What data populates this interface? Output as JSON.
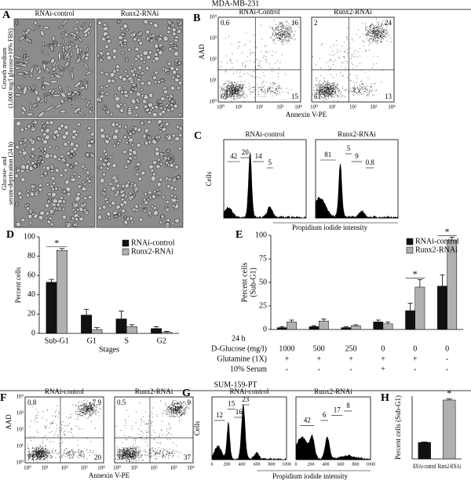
{
  "header": {
    "top": "MDA-MB-231",
    "bottom": "SUM-159-PT"
  },
  "panel_a": {
    "letter": "A",
    "columns": [
      "RNAi-control",
      "Runx2-RNAi"
    ],
    "rows": [
      [
        "Growth medium",
        "(1,000 mg/l glucose+10% FBS)"
      ],
      [
        "Glucose- and",
        "serum-deprivation (24 h)"
      ]
    ]
  },
  "panel_b": {
    "letter": "B",
    "y_label": "AAD",
    "x_label": "Annexin V-PE",
    "ticks": [
      "10⁰",
      "10¹",
      "10²",
      "10³",
      "10⁴"
    ],
    "plots": [
      {
        "title": "RNAi-Control",
        "quadrants": [
          0.6,
          16,
          69,
          15
        ]
      },
      {
        "title": "Runx2-RNAi",
        "quadrants": [
          2,
          24,
          61,
          13
        ]
      }
    ]
  },
  "panel_c": {
    "letter": "C",
    "y_label": "Cells",
    "x_label": "Propidium iodide intensity",
    "plots": [
      {
        "title": "RNAi-control",
        "gates": [
          42,
          20,
          14,
          5
        ]
      },
      {
        "title": "Runx2-RNAi",
        "gates": [
          81,
          5,
          9,
          0.8
        ]
      }
    ]
  },
  "panel_f": {
    "letter": "F",
    "y_label": "AAD",
    "x_label": "Annexin V-PE",
    "ticks": [
      "10⁰",
      "10¹",
      "10²",
      "10³",
      "10⁴"
    ],
    "plots": [
      {
        "title": "RNAi-control",
        "quadrants": [
          0.8,
          7.9,
          71,
          20
        ]
      },
      {
        "title": "Runx2-RNAi",
        "quadrants": [
          0.5,
          9,
          53,
          37
        ]
      }
    ]
  },
  "panel_g": {
    "letter": "G",
    "y_label": "Cells",
    "x_label": "Propidium iodide intensity",
    "ticks": [
      0,
      200,
      400,
      600,
      800,
      1000
    ],
    "plots": [
      {
        "title": "RNAi-control",
        "gates": [
          12,
          15,
          16,
          23
        ]
      },
      {
        "title": "Runx2-RNAi",
        "gates": [
          42,
          6,
          17,
          8
        ]
      }
    ]
  },
  "chart_data": [
    {
      "type": "bar",
      "letter": "D",
      "ylabel": "Percent cells",
      "xlabel": "Stages",
      "categories": [
        "Sub-G1",
        "G1",
        "S",
        "G2"
      ],
      "series": [
        {
          "name": "RNAi-control",
          "color": "#111111",
          "values": [
            53,
            19,
            15,
            5
          ],
          "errors": [
            3,
            6,
            8,
            2
          ]
        },
        {
          "name": "Runx2-RNAi",
          "color": "#b0b0b0",
          "values": [
            86,
            4,
            7,
            1
          ],
          "errors": [
            2,
            2,
            2,
            1
          ]
        }
      ],
      "ylim": [
        0,
        100
      ],
      "yticks": [
        0,
        20,
        40,
        60,
        80,
        100
      ],
      "legend": "upper-right",
      "annotations": [
        {
          "text": "*",
          "category": 0
        }
      ]
    },
    {
      "type": "bar",
      "letter": "E",
      "ylabel": [
        "Percent cells",
        "(Sub-G1)"
      ],
      "categories": [
        null,
        null,
        null,
        null,
        null,
        null
      ],
      "series": [
        {
          "name": "RNAi-control",
          "color": "#111111",
          "values": [
            2,
            3,
            2,
            8,
            20,
            46
          ],
          "errors": [
            1,
            1,
            1,
            2,
            8,
            12
          ]
        },
        {
          "name": "Runx2-RNAi",
          "color": "#b0b0b0",
          "values": [
            8,
            9,
            4,
            6,
            45,
            95
          ],
          "errors": [
            2,
            2,
            1,
            2,
            8,
            3
          ]
        }
      ],
      "ylim": [
        0,
        100
      ],
      "yticks": [
        0,
        25,
        50,
        75,
        100
      ],
      "legend": "upper-right",
      "annotations": [
        {
          "text": "*",
          "category": 4
        },
        {
          "text": "*",
          "category": 5
        }
      ],
      "table_title": "24 h",
      "table": [
        {
          "label": "D-Glucose (mg/l)",
          "cells": [
            1000,
            500,
            250,
            0,
            0,
            0
          ]
        },
        {
          "label": "Glutamine (1X)",
          "cells": [
            "+",
            "+",
            "+",
            "+",
            "+",
            "-"
          ]
        },
        {
          "label": "10% Serum",
          "cells": [
            "-",
            "-",
            "-",
            "+",
            "-",
            "-"
          ]
        }
      ]
    },
    {
      "type": "bar",
      "letter": "H",
      "ylabel": "Percent cells (Sub-G1)",
      "categories": [
        "RNAi-control",
        "Runx2-RNAi"
      ],
      "series": [
        {
          "values": [
            10.5,
            37.5
          ],
          "errors": [
            0.3,
            0.8
          ],
          "colors": [
            "#111111",
            "#b0b0b0"
          ]
        }
      ],
      "ylim": [
        0,
        40
      ],
      "annotations": [
        {
          "text": "*",
          "category": 1
        }
      ]
    }
  ]
}
